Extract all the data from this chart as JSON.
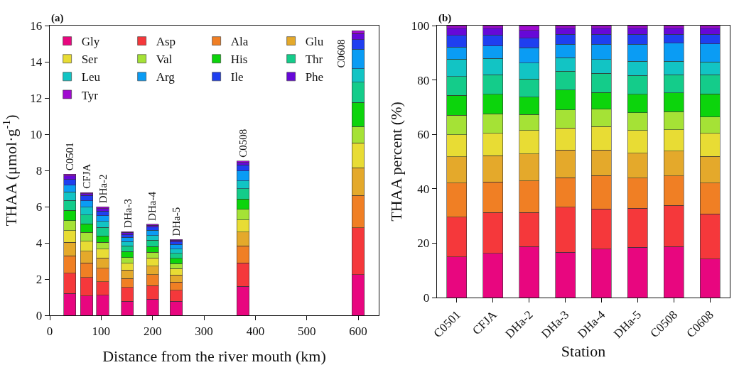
{
  "chart_data": [
    {
      "type": "bar",
      "stacked": true,
      "xlabel": "Distance from the river mouth (km)",
      "ylabel": "THAA (μmol·g$^{-1}$)",
      "x": [
        39,
        72,
        103,
        151,
        200,
        246,
        376,
        600
      ],
      "xlim": [
        0,
        640
      ],
      "xticks": [
        0,
        100,
        200,
        300,
        400,
        500,
        600
      ],
      "ylim": [
        0,
        16
      ],
      "yticks": [
        0,
        2,
        4,
        6,
        8,
        10,
        12,
        14,
        16
      ],
      "legend": "top left",
      "annotations": [
        "(a)",
        {
          "text": "C0501",
          "x": 39,
          "y": 7.8
        },
        {
          "text": "CFJA",
          "x": 72,
          "y": 6.78
        },
        {
          "text": "DHa-2",
          "x": 103,
          "y": 5.99
        },
        {
          "text": "DHa-3",
          "x": 151,
          "y": 4.62
        },
        {
          "text": "DHa-4",
          "x": 200,
          "y": 5.03
        },
        {
          "text": "DHa-5",
          "x": 246,
          "y": 4.19
        },
        {
          "text": "C0508",
          "x": 376,
          "y": 8.52
        },
        {
          "text": "C0608",
          "x": 600,
          "y": 15.71
        }
      ],
      "series": [
        {
          "name": "Gly",
          "color": "#e8067f",
          "values": [
            1.2,
            1.07,
            1.11,
            0.77,
            0.9,
            0.78,
            1.6,
            2.24
          ]
        },
        {
          "name": "Asp",
          "color": "#f5383b",
          "values": [
            1.13,
            1.02,
            0.75,
            0.76,
            0.74,
            0.6,
            1.29,
            2.59
          ]
        },
        {
          "name": "Ala",
          "color": "#f07f24",
          "values": [
            0.96,
            0.8,
            0.74,
            0.5,
            0.61,
            0.46,
            0.94,
            1.79
          ]
        },
        {
          "name": "Glu",
          "color": "#e4a92b",
          "values": [
            0.74,
            0.64,
            0.56,
            0.47,
            0.47,
            0.39,
            0.76,
            1.53
          ]
        },
        {
          "name": "Ser",
          "color": "#e8dc34",
          "values": [
            0.64,
            0.56,
            0.5,
            0.38,
            0.44,
            0.35,
            0.67,
            1.37
          ]
        },
        {
          "name": "Val",
          "color": "#a5e236",
          "values": [
            0.56,
            0.48,
            0.37,
            0.3,
            0.32,
            0.28,
            0.59,
            0.91
          ]
        },
        {
          "name": "His",
          "color": "#0cd40c",
          "values": [
            0.56,
            0.48,
            0.36,
            0.34,
            0.31,
            0.28,
            0.57,
            1.33
          ]
        },
        {
          "name": "Thr",
          "color": "#14cc8a",
          "values": [
            0.56,
            0.48,
            0.47,
            0.32,
            0.35,
            0.29,
            0.57,
            1.12
          ]
        },
        {
          "name": "Leu",
          "color": "#12c4c4",
          "values": [
            0.47,
            0.45,
            0.33,
            0.23,
            0.26,
            0.22,
            0.43,
            0.73
          ]
        },
        {
          "name": "Arg",
          "color": "#0a9cf4",
          "values": [
            0.36,
            0.34,
            0.31,
            0.23,
            0.29,
            0.26,
            0.56,
            1.08
          ]
        },
        {
          "name": "Ile",
          "color": "#1f3ff0",
          "values": [
            0.32,
            0.3,
            0.25,
            0.17,
            0.18,
            0.15,
            0.32,
            0.53
          ]
        },
        {
          "name": "Phe",
          "color": "#6608d8",
          "values": [
            0.19,
            0.1,
            0.15,
            0.1,
            0.11,
            0.09,
            0.14,
            0.33
          ]
        },
        {
          "name": "Tyr",
          "color": "#a00ad0",
          "values": [
            0.11,
            0.06,
            0.09,
            0.05,
            0.05,
            0.04,
            0.08,
            0.16
          ]
        }
      ]
    },
    {
      "type": "bar",
      "stacked": true,
      "xlabel": "Station",
      "ylabel": "THAA percent (%)",
      "categories": [
        "C0501",
        "CFJA",
        "DHa-2",
        "DHa-3",
        "DHa-4",
        "DHa-5",
        "C0508",
        "C0608"
      ],
      "ylim": [
        0,
        100
      ],
      "yticks": [
        0,
        20,
        40,
        60,
        80,
        100
      ],
      "annotations": [
        "(b)"
      ],
      "series": [
        {
          "color": "#e8067f",
          "values": [
            15.0,
            16.3,
            18.8,
            16.7,
            17.8,
            18.5,
            18.8,
            14.2
          ]
        },
        {
          "color": "#f5383b",
          "values": [
            14.6,
            15.0,
            12.5,
            16.5,
            14.8,
            14.3,
            15.1,
            16.6
          ]
        },
        {
          "color": "#f07f24",
          "values": [
            12.5,
            11.2,
            11.6,
            10.8,
            12.2,
            11.1,
            10.8,
            11.3
          ]
        },
        {
          "color": "#e4a92b",
          "values": [
            9.7,
            9.6,
            9.9,
            10.2,
            9.4,
            9.2,
            9.2,
            9.8
          ]
        },
        {
          "color": "#e8dc34",
          "values": [
            8.0,
            8.3,
            8.6,
            8.2,
            8.7,
            8.3,
            7.8,
            8.5
          ]
        },
        {
          "color": "#a5e236",
          "values": [
            7.3,
            7.1,
            5.9,
            6.6,
            6.4,
            6.6,
            6.7,
            6.0
          ]
        },
        {
          "color": "#0cd40c",
          "values": [
            7.2,
            7.3,
            6.4,
            7.3,
            6.1,
            6.7,
            6.8,
            8.5
          ]
        },
        {
          "color": "#14cc8a",
          "values": [
            7.0,
            7.1,
            6.7,
            6.9,
            7.0,
            7.0,
            6.7,
            7.0
          ]
        },
        {
          "color": "#12c4c4",
          "values": [
            6.4,
            6.0,
            5.8,
            5.0,
            5.1,
            5.2,
            5.0,
            4.7
          ]
        },
        {
          "color": "#0a9cf4",
          "values": [
            4.4,
            4.6,
            5.6,
            5.0,
            5.7,
            6.3,
            6.6,
            6.7
          ]
        },
        {
          "color": "#1f3ff0",
          "values": [
            4.3,
            4.0,
            3.6,
            3.6,
            3.6,
            3.6,
            3.3,
            3.5
          ]
        },
        {
          "color": "#6608d8",
          "values": [
            2.6,
            2.5,
            2.9,
            2.2,
            2.2,
            2.2,
            2.2,
            2.2
          ]
        },
        {
          "color": "#a00ad0",
          "values": [
            1.0,
            1.0,
            1.7,
            1.0,
            1.0,
            1.0,
            1.0,
            1.0
          ]
        }
      ]
    }
  ]
}
